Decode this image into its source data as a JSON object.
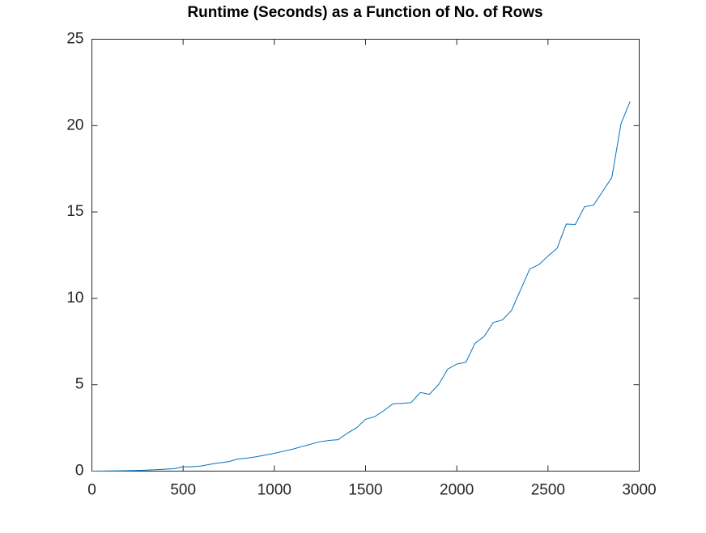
{
  "chart_data": {
    "type": "line",
    "title": "Runtime (Seconds) as a Function of No. of Rows",
    "x": [
      0,
      50,
      100,
      150,
      200,
      250,
      300,
      350,
      400,
      450,
      500,
      550,
      600,
      650,
      700,
      750,
      800,
      850,
      900,
      950,
      1000,
      1050,
      1100,
      1150,
      1200,
      1250,
      1300,
      1350,
      1400,
      1450,
      1500,
      1550,
      1600,
      1650,
      1700,
      1750,
      1800,
      1850,
      1900,
      1950,
      2000,
      2050,
      2100,
      2150,
      2200,
      2250,
      2300,
      2350,
      2400,
      2450,
      2500,
      2550,
      2600,
      2650,
      2700,
      2750,
      2800,
      2850,
      2900,
      2950
    ],
    "series": [
      {
        "color": "#0072bd",
        "values": [
          0,
          0.005,
          0.01,
          0.02,
          0.03,
          0.04,
          0.06,
          0.08,
          0.11,
          0.14,
          0.25,
          0.25,
          0.3,
          0.4,
          0.48,
          0.55,
          0.7,
          0.75,
          0.83,
          0.93,
          1.03,
          1.15,
          1.27,
          1.42,
          1.56,
          1.7,
          1.78,
          1.82,
          2.2,
          2.5,
          3.0,
          3.15,
          3.5,
          3.9,
          3.92,
          3.97,
          4.55,
          4.45,
          5.0,
          5.9,
          6.2,
          6.3,
          7.4,
          7.8,
          8.6,
          8.75,
          9.3,
          10.5,
          11.7,
          11.95,
          12.45,
          12.9,
          14.3,
          14.28,
          15.3,
          15.4,
          16.2,
          17,
          20.1,
          21.4
        ]
      }
    ],
    "xlim": [
      0,
      3000
    ],
    "xticks": [
      0,
      500,
      1000,
      1500,
      2000,
      2500,
      3000
    ],
    "ylim": [
      0,
      25
    ],
    "yticks": [
      0,
      5,
      10,
      15,
      20,
      25
    ],
    "grid": false
  }
}
